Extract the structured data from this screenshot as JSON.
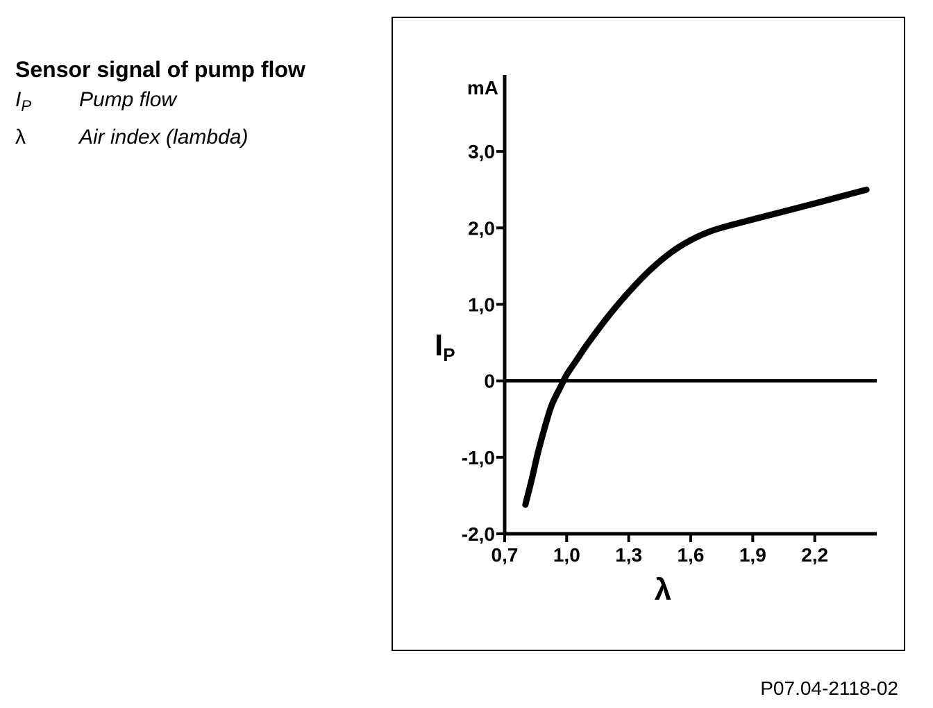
{
  "legend": {
    "title": "Sensor signal of pump flow",
    "items": [
      {
        "symbol": "I",
        "symbol_sub": "P",
        "description": "Pump flow"
      },
      {
        "symbol": "λ",
        "symbol_sub": "",
        "description": "Air index (lambda)"
      }
    ]
  },
  "figure_id": "P07.04-2118-02",
  "chart_data": {
    "type": "line",
    "title": "",
    "xlabel": "λ",
    "ylabel": "I",
    "ylabel_sub": "P",
    "yunit": "mA",
    "xlim": [
      0.7,
      2.5
    ],
    "ylim": [
      -2.0,
      4.0
    ],
    "x_ticks": [
      0.7,
      1.0,
      1.3,
      1.6,
      1.9,
      2.2
    ],
    "x_tick_labels": [
      "0,7",
      "1,0",
      "1,3",
      "1,6",
      "1,9",
      "2,2"
    ],
    "y_ticks": [
      -2.0,
      -1.0,
      0,
      1.0,
      2.0,
      3.0
    ],
    "y_tick_labels": [
      "-2,0",
      "-1,0",
      "0",
      "1,0",
      "2,0",
      "3,0"
    ],
    "grid": false,
    "series": [
      {
        "x": [
          0.8,
          0.83,
          0.86,
          0.9,
          0.93,
          0.97,
          1.0,
          1.05,
          1.1,
          1.2,
          1.3,
          1.4,
          1.5,
          1.6,
          1.7,
          1.8,
          2.0,
          2.2,
          2.45
        ],
        "y": [
          -1.62,
          -1.3,
          -0.95,
          -0.55,
          -0.3,
          -0.08,
          0.08,
          0.28,
          0.48,
          0.84,
          1.16,
          1.44,
          1.67,
          1.84,
          1.96,
          2.04,
          2.18,
          2.32,
          2.5
        ]
      }
    ]
  }
}
